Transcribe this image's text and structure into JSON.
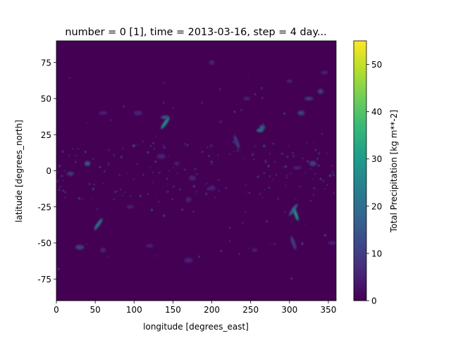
{
  "chart_data": {
    "type": "heatmap",
    "title": "number = 0 [1], time = 2013-03-16, step = 4 day...",
    "xlabel": "longitude [degrees_east]",
    "ylabel": "latitude [degrees_north]",
    "xlim": [
      0,
      360
    ],
    "ylim": [
      -90,
      90
    ],
    "x_ticks": [
      0,
      50,
      100,
      150,
      200,
      250,
      300,
      350
    ],
    "y_ticks": [
      -75,
      -50,
      -25,
      0,
      25,
      50,
      75
    ],
    "colorbar": {
      "label": "Total Precipitation [kg m**-2]",
      "min": 0,
      "max": 55,
      "ticks": [
        0,
        10,
        20,
        30,
        40,
        50
      ],
      "colormap": "viridis",
      "colors": [
        "#440154",
        "#482878",
        "#3e4989",
        "#31688e",
        "#26828e",
        "#1f9e89",
        "#35b779",
        "#6ece58",
        "#b5de2b",
        "#fde725"
      ]
    },
    "background_value": 0,
    "features": [
      {
        "lon": 140,
        "lat": 33,
        "value": 30,
        "shape": "streak"
      },
      {
        "lon": 232,
        "lat": 20,
        "value": 10,
        "shape": "streak"
      },
      {
        "lon": 140,
        "lat": 37,
        "value": 18,
        "shape": "blob"
      },
      {
        "lon": 265,
        "lat": 30,
        "value": 20,
        "shape": "blob"
      },
      {
        "lon": 262,
        "lat": 28,
        "value": 22,
        "shape": "blob"
      },
      {
        "lon": 308,
        "lat": -30,
        "value": 28,
        "shape": "streak"
      },
      {
        "lon": 305,
        "lat": -27,
        "value": 20,
        "shape": "streak"
      },
      {
        "lon": 305,
        "lat": -50,
        "value": 12,
        "shape": "streak"
      },
      {
        "lon": 54,
        "lat": -37,
        "value": 25,
        "shape": "streak"
      },
      {
        "lon": 40,
        "lat": 5,
        "value": 18,
        "shape": "blob"
      },
      {
        "lon": 18,
        "lat": -2,
        "value": 12,
        "shape": "blob"
      },
      {
        "lon": 30,
        "lat": -53,
        "value": 12,
        "shape": "blob"
      },
      {
        "lon": 230,
        "lat": 20,
        "value": 8,
        "shape": "blob"
      },
      {
        "lon": 315,
        "lat": 40,
        "value": 10,
        "shape": "blob"
      },
      {
        "lon": 325,
        "lat": 50,
        "value": 12,
        "shape": "blob"
      },
      {
        "lon": 340,
        "lat": 55,
        "value": 10,
        "shape": "blob"
      },
      {
        "lon": 245,
        "lat": 50,
        "value": 8,
        "shape": "blob"
      },
      {
        "lon": 105,
        "lat": 40,
        "value": 8,
        "shape": "blob"
      },
      {
        "lon": 300,
        "lat": 62,
        "value": 8,
        "shape": "blob"
      },
      {
        "lon": 330,
        "lat": 5,
        "value": 10,
        "shape": "blob"
      },
      {
        "lon": 310,
        "lat": 2,
        "value": 9,
        "shape": "blob"
      },
      {
        "lon": 170,
        "lat": -20,
        "value": 9,
        "shape": "blob"
      },
      {
        "lon": 95,
        "lat": -25,
        "value": 7,
        "shape": "blob"
      },
      {
        "lon": 170,
        "lat": -62,
        "value": 7,
        "shape": "blob"
      },
      {
        "lon": 255,
        "lat": -55,
        "value": 8,
        "shape": "blob"
      },
      {
        "lon": 200,
        "lat": -12,
        "value": 7,
        "shape": "blob"
      },
      {
        "lon": 355,
        "lat": -50,
        "value": 7,
        "shape": "blob"
      },
      {
        "lon": 60,
        "lat": -55,
        "value": 8,
        "shape": "blob"
      },
      {
        "lon": 120,
        "lat": -52,
        "value": 7,
        "shape": "blob"
      },
      {
        "lon": 135,
        "lat": 10,
        "value": 8,
        "shape": "blob"
      },
      {
        "lon": 155,
        "lat": 5,
        "value": 6,
        "shape": "blob"
      },
      {
        "lon": 175,
        "lat": -5,
        "value": 6,
        "shape": "blob"
      },
      {
        "lon": 60,
        "lat": 40,
        "value": 7,
        "shape": "blob"
      },
      {
        "lon": 200,
        "lat": 75,
        "value": 5,
        "shape": "blob"
      },
      {
        "lon": 345,
        "lat": 68,
        "value": 6,
        "shape": "blob"
      }
    ]
  }
}
